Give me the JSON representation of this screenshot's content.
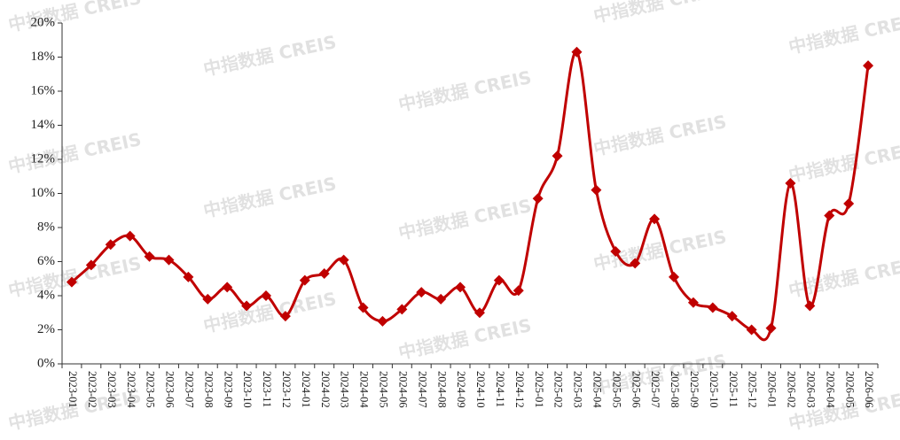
{
  "chart_data": {
    "type": "line",
    "watermark": "中指数据 CREIS",
    "categories": [
      "2023-01",
      "2023-02",
      "2023-03",
      "2023-04",
      "2023-05",
      "2023-06",
      "2023-07",
      "2023-08",
      "2023-09",
      "2023-10",
      "2023-11",
      "2023-12",
      "2024-01",
      "2024-02",
      "2024-03",
      "2024-04",
      "2024-05",
      "2024-06",
      "2024-07",
      "2024-08",
      "2024-09",
      "2024-10",
      "2024-11",
      "2024-12",
      "2025-01",
      "2025-02",
      "2025-03",
      "2025-04",
      "2025-05",
      "2025-06",
      "2025-07",
      "2025-08",
      "2025-09",
      "2025-10",
      "2025-11",
      "2025-12",
      "2026-01",
      "2026-02",
      "2026-03",
      "2026-04",
      "2026-05",
      "2026-06"
    ],
    "values": [
      4.8,
      5.8,
      7.0,
      7.5,
      6.3,
      6.1,
      5.1,
      3.8,
      4.5,
      3.4,
      4.0,
      2.8,
      4.9,
      5.3,
      6.1,
      3.3,
      2.5,
      3.2,
      4.2,
      3.8,
      4.5,
      3.0,
      4.9,
      4.3,
      9.7,
      12.2,
      18.3,
      10.2,
      6.6,
      5.9,
      8.5,
      5.1,
      3.6,
      3.3,
      2.8,
      2.0,
      2.1,
      10.6,
      3.4,
      8.7,
      9.4,
      17.5
    ],
    "color": "#c00000",
    "ylim": [
      0,
      20
    ],
    "yticks": [
      {
        "value": 0,
        "label": "0%"
      },
      {
        "value": 2,
        "label": "2%"
      },
      {
        "value": 4,
        "label": "4%"
      },
      {
        "value": 6,
        "label": "6%"
      },
      {
        "value": 8,
        "label": "8%"
      },
      {
        "value": 10,
        "label": "10%"
      },
      {
        "value": 12,
        "label": "12%"
      },
      {
        "value": 14,
        "label": "14%"
      },
      {
        "value": 16,
        "label": "16%"
      },
      {
        "value": 18,
        "label": "18%"
      },
      {
        "value": 20,
        "label": "20%"
      }
    ],
    "grid": false
  }
}
